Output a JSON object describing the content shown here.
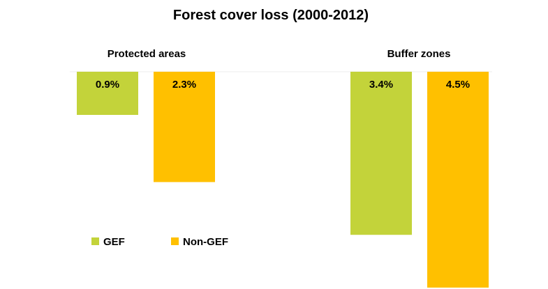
{
  "chart_data": {
    "type": "bar",
    "orientation": "downward",
    "title": "Forest cover loss (2000-2012)",
    "categories": [
      "Protected areas",
      "Buffer zones"
    ],
    "series": [
      {
        "name": "GEF",
        "values": [
          0.9,
          3.4
        ],
        "labels": [
          "0.9%",
          "3.4%"
        ],
        "color": "#C3D33A"
      },
      {
        "name": "Non-GEF",
        "values": [
          2.3,
          4.5
        ],
        "labels": [
          "2.3%",
          "4.5%"
        ],
        "color": "#FFC000"
      }
    ],
    "unit": "%",
    "ylim": [
      0,
      4.5
    ],
    "grid": false,
    "legend_position": "bottom-left"
  }
}
